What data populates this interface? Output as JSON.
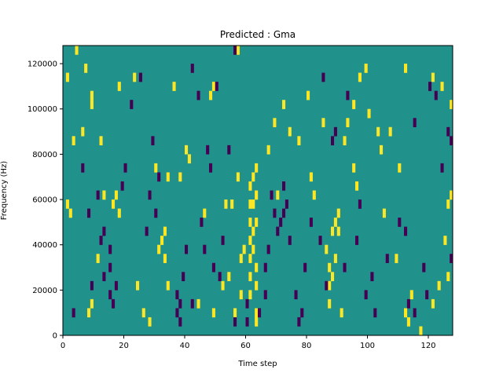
{
  "chart_data": {
    "type": "heatmap",
    "title": "Predicted : Gma",
    "xlabel": "Time step",
    "ylabel": "Frequency (Hz)",
    "xlim": [
      0,
      128
    ],
    "ylim": [
      0,
      128000
    ],
    "xticks": [
      "0",
      "20",
      "40",
      "60",
      "80",
      "100",
      "120"
    ],
    "yticks": [
      "0",
      "20000",
      "40000",
      "60000",
      "80000",
      "100000",
      "120000"
    ],
    "grid": false,
    "legend": "none",
    "colormap": {
      "low": "#440154",
      "mid": "#21918c",
      "high": "#fde725"
    },
    "background_value": 0,
    "cell_height_hz": 4000,
    "cells": [
      [
        63,
        4000,
        1
      ],
      [
        63,
        8000,
        1
      ],
      [
        61,
        16000,
        1
      ],
      [
        61,
        24000,
        1
      ],
      [
        61,
        32000,
        1
      ],
      [
        61,
        40000,
        1
      ],
      [
        61,
        48000,
        1
      ],
      [
        61,
        56000,
        1
      ],
      [
        62,
        56000,
        1
      ],
      [
        62,
        36000,
        1
      ],
      [
        63,
        28000,
        1
      ],
      [
        63,
        20000,
        1
      ],
      [
        62,
        44000,
        1
      ],
      [
        61,
        64000,
        1
      ],
      [
        62,
        68000,
        1
      ],
      [
        63,
        72000,
        1
      ],
      [
        63,
        60000,
        1
      ],
      [
        63,
        48000,
        1
      ],
      [
        31,
        36000,
        1
      ],
      [
        32,
        40000,
        1
      ],
      [
        33,
        44000,
        1
      ],
      [
        33,
        32000,
        1
      ],
      [
        87,
        12000,
        1
      ],
      [
        87,
        20000,
        1
      ],
      [
        88,
        24000,
        1
      ],
      [
        87,
        28000,
        1
      ],
      [
        88,
        44000,
        1
      ],
      [
        89,
        48000,
        1
      ],
      [
        86,
        36000,
        1
      ],
      [
        89,
        32000,
        1
      ],
      [
        16,
        56000,
        1
      ],
      [
        17,
        60000,
        1
      ],
      [
        18,
        52000,
        1
      ],
      [
        12,
        84000,
        1
      ],
      [
        9,
        104000,
        1
      ],
      [
        9,
        100000,
        1
      ],
      [
        7,
        116000,
        1
      ],
      [
        4,
        124000,
        1
      ],
      [
        1,
        112000,
        1
      ],
      [
        3,
        84000,
        1
      ],
      [
        1,
        56000,
        1
      ],
      [
        2,
        52000,
        1
      ],
      [
        8,
        8000,
        1
      ],
      [
        9,
        12000,
        1
      ],
      [
        18,
        108000,
        1
      ],
      [
        23,
        112000,
        1
      ],
      [
        38,
        68000,
        1
      ],
      [
        40,
        80000,
        1
      ],
      [
        41,
        76000,
        1
      ],
      [
        48,
        104000,
        1
      ],
      [
        49,
        108000,
        1
      ],
      [
        53,
        56000,
        1
      ],
      [
        55,
        56000,
        1
      ],
      [
        57,
        124000,
        1
      ],
      [
        57,
        68000,
        1
      ],
      [
        58,
        32000,
        1
      ],
      [
        59,
        36000,
        1
      ],
      [
        56,
        8000,
        1
      ],
      [
        58,
        16000,
        1
      ],
      [
        67,
        80000,
        1
      ],
      [
        69,
        92000,
        1
      ],
      [
        70,
        60000,
        1
      ],
      [
        72,
        100000,
        1
      ],
      [
        74,
        88000,
        1
      ],
      [
        77,
        84000,
        1
      ],
      [
        81,
        68000,
        1
      ],
      [
        82,
        60000,
        1
      ],
      [
        80,
        104000,
        1
      ],
      [
        85,
        92000,
        1
      ],
      [
        90,
        52000,
        1
      ],
      [
        90,
        44000,
        1
      ],
      [
        91,
        8000,
        1
      ],
      [
        95,
        100000,
        1
      ],
      [
        97,
        112000,
        1
      ],
      [
        99,
        116000,
        1
      ],
      [
        100,
        96000,
        1
      ],
      [
        103,
        88000,
        1
      ],
      [
        104,
        80000,
        1
      ],
      [
        107,
        88000,
        1
      ],
      [
        110,
        72000,
        1
      ],
      [
        112,
        8000,
        1
      ],
      [
        113,
        4000,
        1
      ],
      [
        114,
        16000,
        1
      ],
      [
        117,
        0,
        1
      ],
      [
        121,
        12000,
        1
      ],
      [
        123,
        20000,
        1
      ],
      [
        126,
        24000,
        1
      ],
      [
        127,
        100000,
        1
      ],
      [
        126,
        56000,
        1
      ],
      [
        127,
        60000,
        1
      ],
      [
        125,
        40000,
        1
      ],
      [
        124,
        108000,
        1
      ],
      [
        109,
        32000,
        1
      ],
      [
        105,
        52000,
        1
      ],
      [
        96,
        64000,
        1
      ],
      [
        95,
        72000,
        1
      ],
      [
        92,
        84000,
        1
      ],
      [
        93,
        92000,
        1
      ],
      [
        121,
        112000,
        1
      ],
      [
        112,
        116000,
        1
      ],
      [
        24,
        20000,
        1
      ],
      [
        26,
        8000,
        1
      ],
      [
        28,
        4000,
        1
      ],
      [
        34,
        20000,
        1
      ],
      [
        30,
        72000,
        1
      ],
      [
        34,
        68000,
        1
      ],
      [
        36,
        108000,
        1
      ],
      [
        44,
        12000,
        1
      ],
      [
        49,
        8000,
        1
      ],
      [
        52,
        20000,
        1
      ],
      [
        54,
        24000,
        1
      ],
      [
        46,
        52000,
        1
      ],
      [
        11,
        32000,
        1
      ],
      [
        13,
        60000,
        1
      ],
      [
        6,
        88000,
        1
      ],
      [
        11,
        60000,
        -1
      ],
      [
        12,
        40000,
        -1
      ],
      [
        13,
        44000,
        -1
      ],
      [
        15,
        28000,
        -1
      ],
      [
        15,
        16000,
        -1
      ],
      [
        16,
        12000,
        -1
      ],
      [
        17,
        20000,
        -1
      ],
      [
        19,
        64000,
        -1
      ],
      [
        20,
        72000,
        -1
      ],
      [
        22,
        100000,
        -1
      ],
      [
        25,
        112000,
        -1
      ],
      [
        28,
        60000,
        -1
      ],
      [
        29,
        84000,
        -1
      ],
      [
        31,
        68000,
        -1
      ],
      [
        37,
        16000,
        -1
      ],
      [
        37,
        8000,
        -1
      ],
      [
        38,
        4000,
        -1
      ],
      [
        38,
        12000,
        -1
      ],
      [
        39,
        24000,
        -1
      ],
      [
        40,
        36000,
        -1
      ],
      [
        42,
        12000,
        -1
      ],
      [
        45,
        48000,
        -1
      ],
      [
        46,
        36000,
        -1
      ],
      [
        47,
        80000,
        -1
      ],
      [
        48,
        72000,
        -1
      ],
      [
        49,
        28000,
        -1
      ],
      [
        51,
        24000,
        -1
      ],
      [
        52,
        40000,
        -1
      ],
      [
        54,
        80000,
        -1
      ],
      [
        56,
        4000,
        -1
      ],
      [
        60,
        4000,
        -1
      ],
      [
        64,
        8000,
        -1
      ],
      [
        66,
        16000,
        -1
      ],
      [
        66,
        28000,
        -1
      ],
      [
        67,
        36000,
        -1
      ],
      [
        68,
        60000,
        -1
      ],
      [
        69,
        52000,
        -1
      ],
      [
        70,
        44000,
        -1
      ],
      [
        71,
        48000,
        -1
      ],
      [
        72,
        52000,
        -1
      ],
      [
        72,
        64000,
        -1
      ],
      [
        73,
        56000,
        -1
      ],
      [
        74,
        40000,
        -1
      ],
      [
        76,
        16000,
        -1
      ],
      [
        77,
        4000,
        -1
      ],
      [
        78,
        8000,
        -1
      ],
      [
        79,
        28000,
        -1
      ],
      [
        81,
        48000,
        -1
      ],
      [
        84,
        40000,
        -1
      ],
      [
        86,
        20000,
        -1
      ],
      [
        88,
        84000,
        -1
      ],
      [
        89,
        88000,
        -1
      ],
      [
        93,
        104000,
        -1
      ],
      [
        97,
        56000,
        -1
      ],
      [
        96,
        40000,
        -1
      ],
      [
        99,
        16000,
        -1
      ],
      [
        101,
        24000,
        -1
      ],
      [
        102,
        8000,
        -1
      ],
      [
        106,
        32000,
        -1
      ],
      [
        110,
        48000,
        -1
      ],
      [
        112,
        44000,
        -1
      ],
      [
        113,
        12000,
        -1
      ],
      [
        115,
        92000,
        -1
      ],
      [
        118,
        28000,
        -1
      ],
      [
        119,
        16000,
        -1
      ],
      [
        120,
        108000,
        -1
      ],
      [
        122,
        104000,
        -1
      ],
      [
        124,
        72000,
        -1
      ],
      [
        126,
        88000,
        -1
      ],
      [
        127,
        84000,
        -1
      ],
      [
        127,
        32000,
        -1
      ],
      [
        42,
        116000,
        -1
      ],
      [
        44,
        104000,
        -1
      ],
      [
        50,
        108000,
        -1
      ],
      [
        56,
        124000,
        -1
      ],
      [
        60,
        12000,
        -1
      ],
      [
        85,
        112000,
        -1
      ],
      [
        92,
        28000,
        -1
      ],
      [
        115,
        8000,
        -1
      ],
      [
        15,
        36000,
        -1
      ],
      [
        13,
        24000,
        -1
      ],
      [
        8,
        52000,
        -1
      ],
      [
        6,
        72000,
        -1
      ],
      [
        3,
        8000,
        -1
      ],
      [
        9,
        20000,
        -1
      ],
      [
        27,
        44000,
        -1
      ],
      [
        30,
        52000,
        -1
      ]
    ]
  }
}
